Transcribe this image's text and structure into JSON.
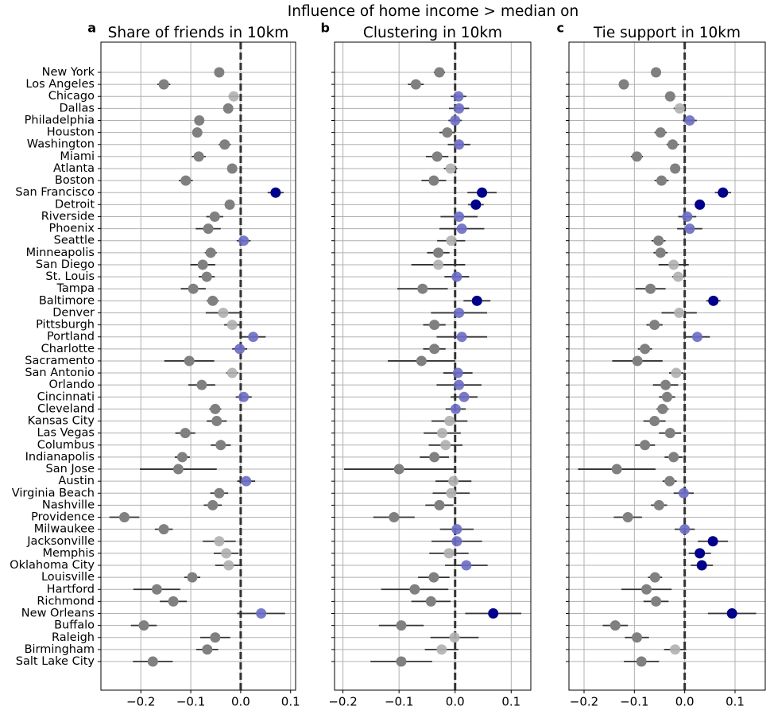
{
  "suptitle": "Influence of home income > median on",
  "chart_data": [
    {
      "type": "dot",
      "panel_label": "a",
      "title": "Share of friends in 10km",
      "categories": [
        "New York",
        "Los Angeles",
        "Chicago",
        "Dallas",
        "Philadelphia",
        "Houston",
        "Washington",
        "Miami",
        "Atlanta",
        "Boston",
        "San Francisco",
        "Detroit",
        "Riverside",
        "Phoenix",
        "Seattle",
        "Minneapolis",
        "San Diego",
        "St. Louis",
        "Tampa",
        "Baltimore",
        "Denver",
        "Pittsburgh",
        "Portland",
        "Charlotte",
        "Sacramento",
        "San Antonio",
        "Orlando",
        "Cincinnati",
        "Cleveland",
        "Kansas City",
        "Las Vegas",
        "Columbus",
        "Indianapolis",
        "San Jose",
        "Austin",
        "Virginia Beach",
        "Nashville",
        "Providence",
        "Milwaukee",
        "Jacksonville",
        "Memphis",
        "Oklahoma City",
        "Louisville",
        "Hartford",
        "Richmond",
        "New Orleans",
        "Buffalo",
        "Raleigh",
        "Birmingham",
        "Salt Lake City"
      ],
      "values": [
        -0.043,
        -0.154,
        -0.014,
        -0.025,
        -0.083,
        -0.087,
        -0.032,
        -0.084,
        -0.017,
        -0.11,
        0.07,
        -0.022,
        -0.052,
        -0.065,
        0.006,
        -0.06,
        -0.076,
        -0.068,
        -0.095,
        -0.056,
        -0.035,
        -0.017,
        0.025,
        -0.002,
        -0.103,
        -0.017,
        -0.078,
        0.006,
        -0.051,
        -0.048,
        -0.111,
        -0.04,
        -0.117,
        -0.125,
        0.011,
        -0.043,
        -0.056,
        -0.233,
        -0.154,
        -0.043,
        -0.029,
        -0.024,
        -0.097,
        -0.168,
        -0.135,
        0.041,
        -0.194,
        -0.051,
        -0.067,
        -0.176
      ],
      "errors": [
        0.008,
        0.013,
        0.01,
        0.008,
        0.01,
        0.01,
        0.012,
        0.014,
        0.008,
        0.014,
        0.016,
        0.01,
        0.017,
        0.025,
        0.014,
        0.012,
        0.025,
        0.016,
        0.025,
        0.012,
        0.035,
        0.016,
        0.025,
        0.015,
        0.05,
        0.012,
        0.027,
        0.016,
        0.012,
        0.02,
        0.02,
        0.02,
        0.015,
        0.077,
        0.018,
        0.018,
        0.018,
        0.03,
        0.018,
        0.033,
        0.025,
        0.027,
        0.016,
        0.047,
        0.027,
        0.048,
        0.026,
        0.03,
        0.022,
        0.04
      ],
      "colors": [
        "#808080",
        "#808080",
        "#b0b0b0",
        "#808080",
        "#808080",
        "#808080",
        "#808080",
        "#808080",
        "#808080",
        "#808080",
        "#00008b",
        "#808080",
        "#808080",
        "#808080",
        "#6b6bc4",
        "#808080",
        "#808080",
        "#808080",
        "#808080",
        "#808080",
        "#b0b0b0",
        "#b0b0b0",
        "#6b6bc4",
        "#6b6bc4",
        "#808080",
        "#b0b0b0",
        "#808080",
        "#6b6bc4",
        "#808080",
        "#808080",
        "#808080",
        "#808080",
        "#808080",
        "#808080",
        "#6b6bc4",
        "#808080",
        "#808080",
        "#808080",
        "#808080",
        "#b0b0b0",
        "#b0b0b0",
        "#b0b0b0",
        "#808080",
        "#808080",
        "#808080",
        "#6b6bc4",
        "#808080",
        "#808080",
        "#808080",
        "#808080"
      ],
      "xlim": [
        -0.28,
        0.11
      ],
      "xticks": [
        {
          "value": -0.2,
          "label": "−0.2"
        },
        {
          "value": -0.1,
          "label": "−0.1"
        },
        {
          "value": 0,
          "label": "0.0"
        },
        0.1
      ],
      "vline": 0,
      "grid": true
    },
    {
      "type": "dot",
      "panel_label": "b",
      "title": "Clustering in 10km",
      "values": [
        -0.028,
        -0.07,
        0.006,
        0.007,
        0.0,
        -0.014,
        0.007,
        -0.032,
        -0.008,
        -0.038,
        0.048,
        0.037,
        0.007,
        0.012,
        -0.007,
        -0.03,
        -0.03,
        0.003,
        -0.058,
        0.039,
        0.007,
        -0.037,
        0.012,
        -0.037,
        -0.06,
        0.005,
        0.007,
        0.016,
        0.001,
        -0.01,
        -0.023,
        -0.017,
        -0.037,
        -0.1,
        -0.003,
        -0.007,
        -0.028,
        -0.109,
        0.003,
        0.003,
        -0.011,
        0.02,
        -0.038,
        -0.072,
        -0.043,
        0.068,
        -0.096,
        -0.001,
        -0.024,
        -0.096
      ],
      "errors": [
        0.01,
        0.014,
        0.014,
        0.018,
        0.012,
        0.014,
        0.02,
        0.02,
        0.012,
        0.022,
        0.026,
        0.014,
        0.033,
        0.04,
        0.025,
        0.02,
        0.048,
        0.022,
        0.045,
        0.024,
        0.05,
        0.02,
        0.045,
        0.02,
        0.06,
        0.026,
        0.04,
        0.024,
        0.018,
        0.032,
        0.033,
        0.03,
        0.026,
        0.098,
        0.032,
        0.033,
        0.025,
        0.037,
        0.03,
        0.045,
        0.035,
        0.038,
        0.028,
        0.06,
        0.035,
        0.05,
        0.04,
        0.043,
        0.03,
        0.055
      ],
      "colors": [
        "#808080",
        "#808080",
        "#6b6bc4",
        "#6b6bc4",
        "#6b6bc4",
        "#808080",
        "#6b6bc4",
        "#808080",
        "#b0b0b0",
        "#808080",
        "#00008b",
        "#00008b",
        "#6b6bc4",
        "#6b6bc4",
        "#b0b0b0",
        "#808080",
        "#b0b0b0",
        "#6b6bc4",
        "#808080",
        "#00008b",
        "#6b6bc4",
        "#808080",
        "#6b6bc4",
        "#808080",
        "#808080",
        "#6b6bc4",
        "#6b6bc4",
        "#6b6bc4",
        "#6b6bc4",
        "#b0b0b0",
        "#b0b0b0",
        "#b0b0b0",
        "#808080",
        "#808080",
        "#b0b0b0",
        "#b0b0b0",
        "#808080",
        "#808080",
        "#6b6bc4",
        "#6b6bc4",
        "#b0b0b0",
        "#6b6bc4",
        "#808080",
        "#808080",
        "#808080",
        "#00008b",
        "#808080",
        "#b0b0b0",
        "#b0b0b0",
        "#808080"
      ],
      "xlim": [
        -0.215,
        0.135
      ],
      "xticks": [
        {
          "value": -0.2,
          "label": "−0.2"
        },
        {
          "value": -0.1,
          "label": "−0.1"
        },
        {
          "value": 0,
          "label": "0.0"
        },
        0.1
      ],
      "vline": 0,
      "grid": true
    },
    {
      "type": "dot",
      "panel_label": "c",
      "title": "Tie support in 10km",
      "values": [
        -0.057,
        -0.121,
        -0.029,
        -0.01,
        0.01,
        -0.048,
        -0.024,
        -0.095,
        -0.019,
        -0.046,
        0.076,
        0.03,
        0.005,
        0.01,
        -0.052,
        -0.048,
        -0.022,
        -0.013,
        -0.068,
        0.057,
        -0.011,
        -0.06,
        0.025,
        -0.079,
        -0.094,
        -0.017,
        -0.038,
        -0.035,
        -0.044,
        -0.06,
        -0.029,
        -0.079,
        -0.022,
        -0.135,
        -0.03,
        -0.002,
        -0.051,
        -0.113,
        0.0,
        0.056,
        0.03,
        0.034,
        -0.059,
        -0.076,
        -0.057,
        0.094,
        -0.138,
        -0.095,
        -0.019,
        -0.086
      ],
      "errors": [
        0.008,
        0.01,
        0.01,
        0.012,
        0.014,
        0.012,
        0.012,
        0.012,
        0.008,
        0.014,
        0.016,
        0.01,
        0.018,
        0.025,
        0.014,
        0.014,
        0.03,
        0.012,
        0.03,
        0.014,
        0.035,
        0.016,
        0.025,
        0.014,
        0.05,
        0.014,
        0.025,
        0.016,
        0.012,
        0.022,
        0.022,
        0.02,
        0.018,
        0.077,
        0.014,
        0.02,
        0.016,
        0.028,
        0.02,
        0.03,
        0.022,
        0.022,
        0.014,
        0.05,
        0.025,
        0.048,
        0.025,
        0.024,
        0.022,
        0.035
      ],
      "colors": [
        "#808080",
        "#808080",
        "#808080",
        "#b0b0b0",
        "#6b6bc4",
        "#808080",
        "#808080",
        "#808080",
        "#808080",
        "#808080",
        "#00008b",
        "#00008b",
        "#6b6bc4",
        "#6b6bc4",
        "#808080",
        "#808080",
        "#b0b0b0",
        "#b0b0b0",
        "#808080",
        "#00008b",
        "#b0b0b0",
        "#808080",
        "#6b6bc4",
        "#808080",
        "#808080",
        "#b0b0b0",
        "#808080",
        "#808080",
        "#808080",
        "#808080",
        "#808080",
        "#808080",
        "#808080",
        "#808080",
        "#808080",
        "#6b6bc4",
        "#808080",
        "#808080",
        "#6b6bc4",
        "#00008b",
        "#00008b",
        "#00008b",
        "#808080",
        "#808080",
        "#808080",
        "#00008b",
        "#808080",
        "#808080",
        "#b0b0b0",
        "#808080"
      ],
      "xlim": [
        -0.23,
        0.16
      ],
      "xticks": [
        {
          "value": -0.2,
          "label": "−0.2"
        },
        {
          "value": -0.1,
          "label": "−0.1"
        },
        {
          "value": 0,
          "label": "0.0"
        },
        0.1
      ],
      "vline": 0,
      "grid": true
    }
  ]
}
